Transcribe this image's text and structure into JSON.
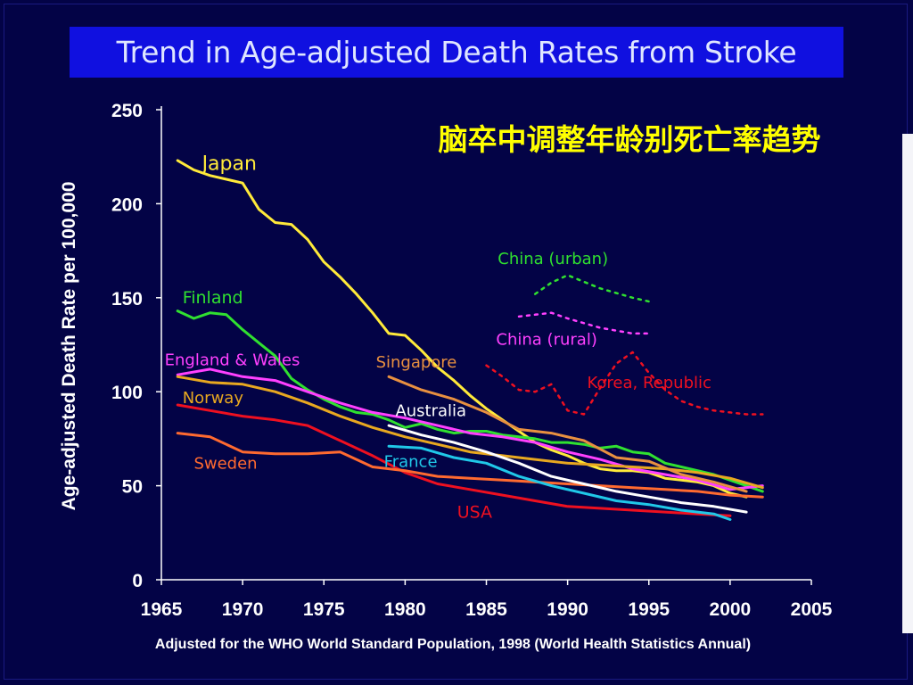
{
  "slide": {
    "title": "Trend in Age-adjusted Death Rates from Stroke",
    "subtitle_cn": "脑卒中调整年龄别死亡率趋势",
    "footnote": "Adjusted for the WHO World Standard Population, 1998  (World Health Statistics Annual)"
  },
  "colors": {
    "background": "#030346",
    "title_bar": "#1010e0",
    "subtitle_cn": "#ffff00",
    "axis_text": "#ffffff"
  },
  "chart_data": {
    "type": "line",
    "title": "Trend in Age-adjusted Death Rates from Stroke",
    "xlabel": "",
    "ylabel": "Age-adjusted Death Rate per 100,000",
    "xlim": [
      1965,
      2005
    ],
    "ylim": [
      0,
      250
    ],
    "x_ticks": [
      "1965",
      "1970",
      "1975",
      "1980",
      "1985",
      "1990",
      "1995",
      "2000",
      "2005"
    ],
    "y_ticks": [
      "0",
      "50",
      "100",
      "150",
      "200",
      "250"
    ],
    "grid": false,
    "series": [
      {
        "name": "Japan",
        "color": "#ffea3a",
        "dashed": false,
        "x": [
          1966,
          1967,
          1968,
          1969,
          1970,
          1971,
          1972,
          1973,
          1974,
          1975,
          1976,
          1977,
          1978,
          1979,
          1980,
          1981,
          1982,
          1983,
          1984,
          1985,
          1986,
          1987,
          1988,
          1989,
          1990,
          1991,
          1992,
          1993,
          1994,
          1995,
          1996,
          1997,
          1998,
          1999,
          2000,
          2001
        ],
        "y": [
          223,
          218,
          215,
          213,
          211,
          197,
          190,
          189,
          181,
          169,
          161,
          152,
          142,
          131,
          130,
          122,
          113,
          106,
          98,
          91,
          85,
          79,
          73,
          69,
          66,
          62,
          59,
          58,
          58,
          57,
          54,
          53,
          52,
          50,
          46,
          44
        ]
      },
      {
        "name": "Finland",
        "color": "#30e030",
        "dashed": false,
        "x": [
          1966,
          1967,
          1968,
          1969,
          1970,
          1971,
          1972,
          1973,
          1974,
          1975,
          1976,
          1977,
          1978,
          1979,
          1980,
          1981,
          1982,
          1983,
          1984,
          1985,
          1986,
          1987,
          1988,
          1989,
          1990,
          1991,
          1992,
          1993,
          1994,
          1995,
          1996,
          1997,
          1998,
          1999,
          2000,
          2001,
          2002
        ],
        "y": [
          143,
          139,
          142,
          141,
          133,
          126,
          119,
          107,
          101,
          96,
          92,
          89,
          88,
          85,
          81,
          83,
          80,
          78,
          79,
          79,
          77,
          76,
          75,
          73,
          73,
          72,
          70,
          71,
          68,
          67,
          62,
          60,
          58,
          56,
          53,
          50,
          47
        ]
      },
      {
        "name": "England & Wales",
        "color": "#ff40ff",
        "dashed": false,
        "x": [
          1966,
          1968,
          1970,
          1972,
          1974,
          1976,
          1978,
          1980,
          1982,
          1984,
          1986,
          1988,
          1990,
          1992,
          1994,
          1996,
          1998,
          2000,
          2002
        ],
        "y": [
          109,
          112,
          108,
          106,
          100,
          94,
          89,
          86,
          82,
          78,
          76,
          73,
          68,
          64,
          59,
          56,
          53,
          48,
          50
        ]
      },
      {
        "name": "Norway",
        "color": "#e8a820",
        "dashed": false,
        "x": [
          1966,
          1968,
          1970,
          1972,
          1974,
          1976,
          1978,
          1980,
          1982,
          1984,
          1986,
          1988,
          1990,
          1992,
          1994,
          1996,
          1998,
          2000,
          2002
        ],
        "y": [
          108,
          105,
          104,
          100,
          94,
          87,
          81,
          76,
          72,
          68,
          66,
          64,
          62,
          61,
          60,
          59,
          57,
          54,
          49
        ]
      },
      {
        "name": "USA",
        "color": "#ee1020",
        "dashed": false,
        "x": [
          1966,
          1968,
          1970,
          1972,
          1974,
          1976,
          1978,
          1980,
          1982,
          1984,
          1986,
          1988,
          1990,
          1992,
          1994,
          1996,
          1998,
          2000
        ],
        "y": [
          93,
          90,
          87,
          85,
          82,
          74,
          66,
          57,
          51,
          48,
          45,
          42,
          39,
          38,
          37,
          36,
          35,
          34
        ]
      },
      {
        "name": "Sweden",
        "color": "#ff6a30",
        "dashed": false,
        "x": [
          1966,
          1968,
          1970,
          1972,
          1974,
          1976,
          1978,
          1980,
          1982,
          1984,
          1986,
          1988,
          1990,
          1992,
          1994,
          1996,
          1998,
          2000,
          2002
        ],
        "y": [
          78,
          76,
          68,
          67,
          67,
          68,
          60,
          58,
          55,
          54,
          53,
          52,
          51,
          50,
          49,
          48,
          47,
          45,
          44
        ]
      },
      {
        "name": "Singapore",
        "color": "#e89040",
        "dashed": false,
        "x": [
          1979,
          1981,
          1983,
          1985,
          1987,
          1989,
          1991,
          1993,
          1995,
          1997,
          1999,
          2001
        ],
        "y": [
          108,
          101,
          96,
          89,
          80,
          78,
          74,
          65,
          63,
          56,
          52,
          47
        ]
      },
      {
        "name": "Australia",
        "color": "#ffffff",
        "dashed": false,
        "x": [
          1979,
          1981,
          1983,
          1985,
          1987,
          1989,
          1991,
          1993,
          1995,
          1997,
          1999,
          2001
        ],
        "y": [
          82,
          77,
          73,
          68,
          62,
          55,
          51,
          47,
          44,
          41,
          39,
          36
        ]
      },
      {
        "name": "France",
        "color": "#20c8e8",
        "dashed": false,
        "x": [
          1979,
          1981,
          1983,
          1985,
          1987,
          1989,
          1991,
          1993,
          1995,
          1997,
          1999,
          2000
        ],
        "y": [
          71,
          70,
          65,
          62,
          55,
          50,
          46,
          42,
          40,
          37,
          35,
          32
        ]
      },
      {
        "name": "China (urban)",
        "color": "#30e030",
        "dashed": true,
        "x": [
          1988,
          1989,
          1990,
          1992,
          1994,
          1995
        ],
        "y": [
          152,
          158,
          162,
          155,
          150,
          148
        ]
      },
      {
        "name": "China (rural)",
        "color": "#ff40ff",
        "dashed": true,
        "x": [
          1987,
          1988,
          1989,
          1990,
          1992,
          1994,
          1995
        ],
        "y": [
          140,
          141,
          142,
          139,
          134,
          131,
          131
        ]
      },
      {
        "name": "Korea, Republic",
        "color": "#ee1020",
        "dashed": true,
        "x": [
          1985,
          1986,
          1987,
          1988,
          1989,
          1990,
          1991,
          1992,
          1993,
          1994,
          1995,
          1996,
          1997,
          1998,
          1999,
          2000,
          2001,
          2002
        ],
        "y": [
          114,
          108,
          101,
          100,
          104,
          90,
          88,
          102,
          115,
          121,
          110,
          101,
          95,
          92,
          90,
          89,
          88,
          88
        ]
      }
    ],
    "series_labels": [
      {
        "name": "Japan",
        "color": "#ffea3a",
        "x": 1967.5,
        "y": 218,
        "size": 22
      },
      {
        "name": "Finland",
        "color": "#30e030",
        "x": 1966.3,
        "y": 147,
        "size": 19
      },
      {
        "name": "England & Wales",
        "color": "#ff40ff",
        "x": 1965.2,
        "y": 114,
        "size": 18
      },
      {
        "name": "Norway",
        "color": "#e8a820",
        "x": 1966.3,
        "y": 94,
        "size": 18
      },
      {
        "name": "Sweden",
        "color": "#ff6a30",
        "x": 1967.0,
        "y": 59,
        "size": 18
      },
      {
        "name": "USA",
        "color": "#ee1020",
        "x": 1983.2,
        "y": 33,
        "size": 19
      },
      {
        "name": "Singapore",
        "color": "#e89040",
        "x": 1978.2,
        "y": 113,
        "size": 18
      },
      {
        "name": "Australia",
        "color": "#ffffff",
        "x": 1979.4,
        "y": 87,
        "size": 18
      },
      {
        "name": "France",
        "color": "#20c8e8",
        "x": 1978.7,
        "y": 60,
        "size": 18
      },
      {
        "name": "China (urban)",
        "color": "#30e030",
        "x": 1985.7,
        "y": 168,
        "size": 18
      },
      {
        "name": "China (rural)",
        "color": "#ff40ff",
        "x": 1985.6,
        "y": 125,
        "size": 18
      },
      {
        "name": "Korea, Republic",
        "color": "#ee1020",
        "x": 1991.2,
        "y": 102,
        "size": 18
      }
    ]
  }
}
